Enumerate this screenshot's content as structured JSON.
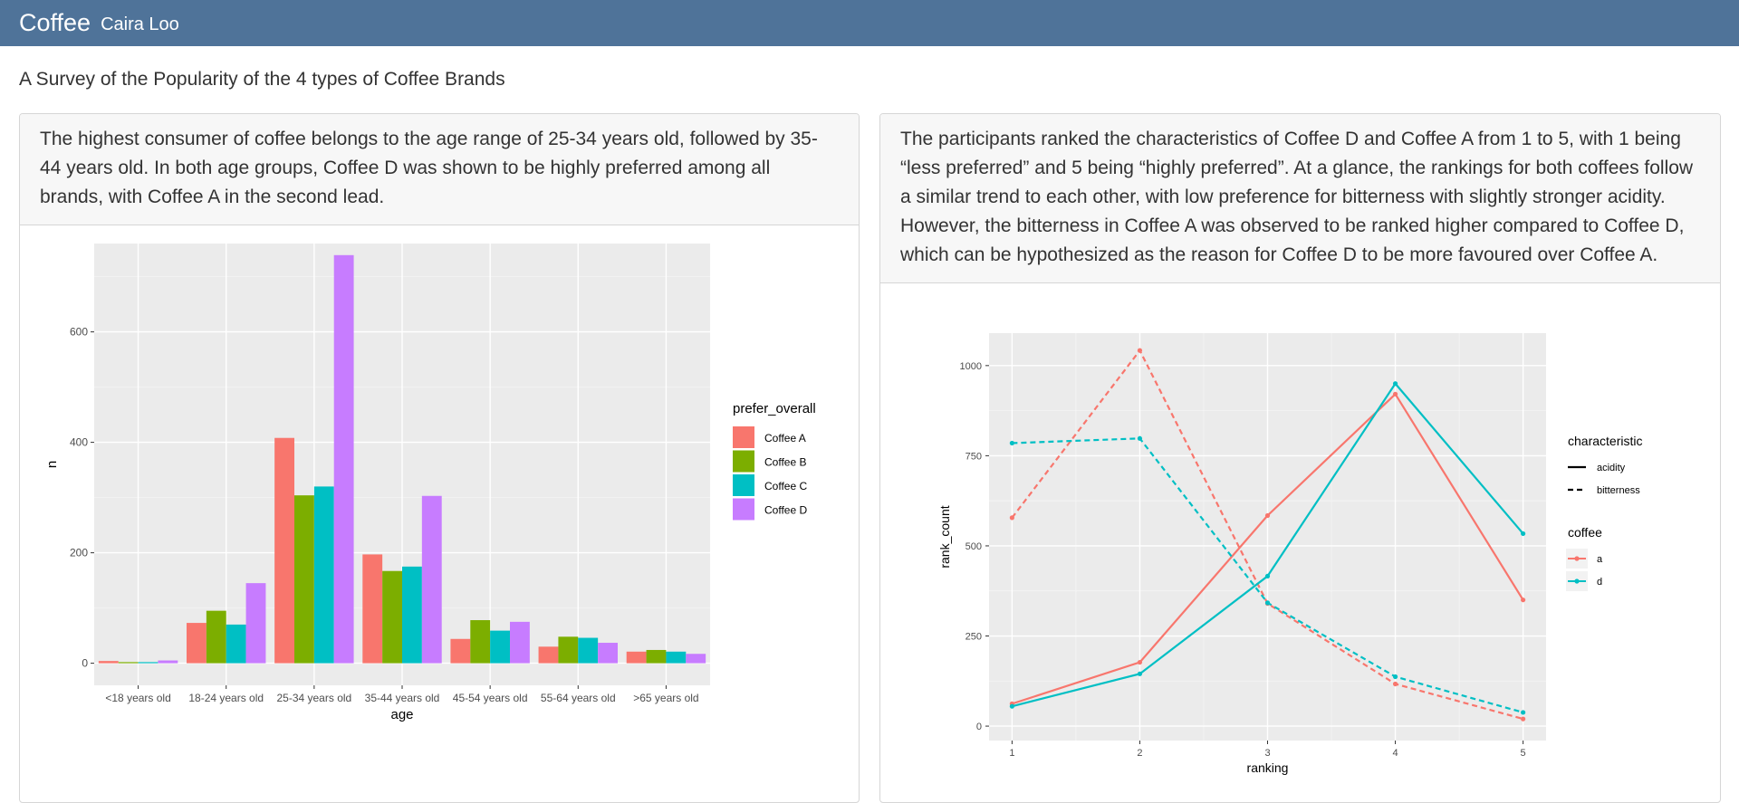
{
  "nav": {
    "title": "Coffee",
    "author": "Caira Loo"
  },
  "page": {
    "subtitle": "A Survey of the Popularity of the 4 types of Coffee Brands"
  },
  "cards": {
    "left_text": "The highest consumer of coffee belongs to the age range of 25-34 years old, followed by 35-44 years old. In both age groups, Coffee D was shown to be highly preferred among all brands, with Coffee A in the second lead.",
    "right_text": "The participants ranked the characteristics of Coffee D and Coffee A from 1 to 5, with 1 being “less preferred” and 5 being “highly preferred”. At a glance, the rankings for both coffees follow a similar trend to each other, with low preference for bitterness with slightly stronger acidity. However, the bitterness in Coffee A was observed to be ranked higher compared to Coffee D, which can be hypothesized as the reason for Coffee D to be more favoured over Coffee A."
  },
  "chart_data": [
    {
      "type": "bar",
      "xlabel": "age",
      "ylabel": "n",
      "legend_title": "prefer_overall",
      "legend_position": "right",
      "grid": true,
      "ylim": [
        0,
        760
      ],
      "yticks": [
        0,
        200,
        400,
        600
      ],
      "categories": [
        "<18 years old",
        "18-24 years old",
        "25-34 years old",
        "35-44 years old",
        "45-54 years old",
        "55-64 years old",
        ">65 years old"
      ],
      "series": [
        {
          "name": "Coffee A",
          "color": "#F8766D",
          "values": [
            4,
            73,
            408,
            197,
            44,
            30,
            21
          ]
        },
        {
          "name": "Coffee B",
          "color": "#7CAE00",
          "values": [
            2,
            95,
            304,
            167,
            78,
            48,
            24
          ]
        },
        {
          "name": "Coffee C",
          "color": "#00BFC4",
          "values": [
            2,
            70,
            320,
            175,
            59,
            46,
            21
          ]
        },
        {
          "name": "Coffee D",
          "color": "#C77CFF",
          "values": [
            5,
            145,
            739,
            303,
            75,
            37,
            17
          ]
        }
      ]
    },
    {
      "type": "line",
      "xlabel": "ranking",
      "ylabel": "rank_count",
      "legend_position": "right",
      "grid": true,
      "x": [
        1,
        2,
        3,
        4,
        5
      ],
      "xlim": [
        0.82,
        5.18
      ],
      "ylim": [
        -40,
        1090
      ],
      "yticks": [
        0,
        250,
        500,
        750,
        1000
      ],
      "linetype_legend": {
        "title": "characteristic",
        "items": [
          "acidity",
          "bitterness"
        ]
      },
      "color_legend": {
        "title": "coffee",
        "items": [
          "a",
          "d"
        ]
      },
      "series": [
        {
          "coffee": "a",
          "characteristic": "acidity",
          "color": "#F8766D",
          "dash": "solid",
          "values": [
            62,
            177,
            584,
            921,
            350
          ]
        },
        {
          "coffee": "a",
          "characteristic": "bitterness",
          "color": "#F8766D",
          "dash": "dashed",
          "values": [
            578,
            1042,
            340,
            117,
            20
          ]
        },
        {
          "coffee": "d",
          "characteristic": "acidity",
          "color": "#00BFC4",
          "dash": "solid",
          "values": [
            55,
            145,
            416,
            950,
            534
          ]
        },
        {
          "coffee": "d",
          "characteristic": "bitterness",
          "color": "#00BFC4",
          "dash": "dashed",
          "values": [
            785,
            798,
            342,
            137,
            38
          ]
        }
      ]
    }
  ]
}
